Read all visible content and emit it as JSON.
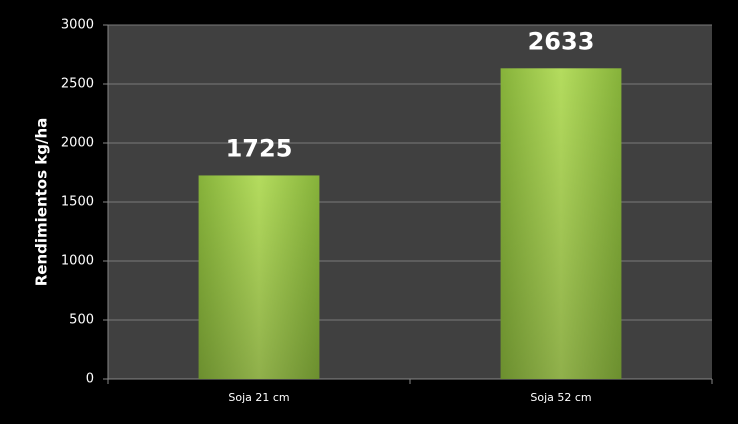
{
  "chart_data": {
    "type": "bar",
    "y_label": "Rendimientos kg/ha",
    "categories": [
      "Soja 21 cm",
      "Soja 52 cm"
    ],
    "values": [
      1725,
      2633
    ],
    "color": "#9ccc4a",
    "ylim": [
      0,
      3000
    ],
    "yticks": [
      0,
      500,
      1000,
      1500,
      2000,
      2500,
      3000
    ],
    "grid": true
  }
}
